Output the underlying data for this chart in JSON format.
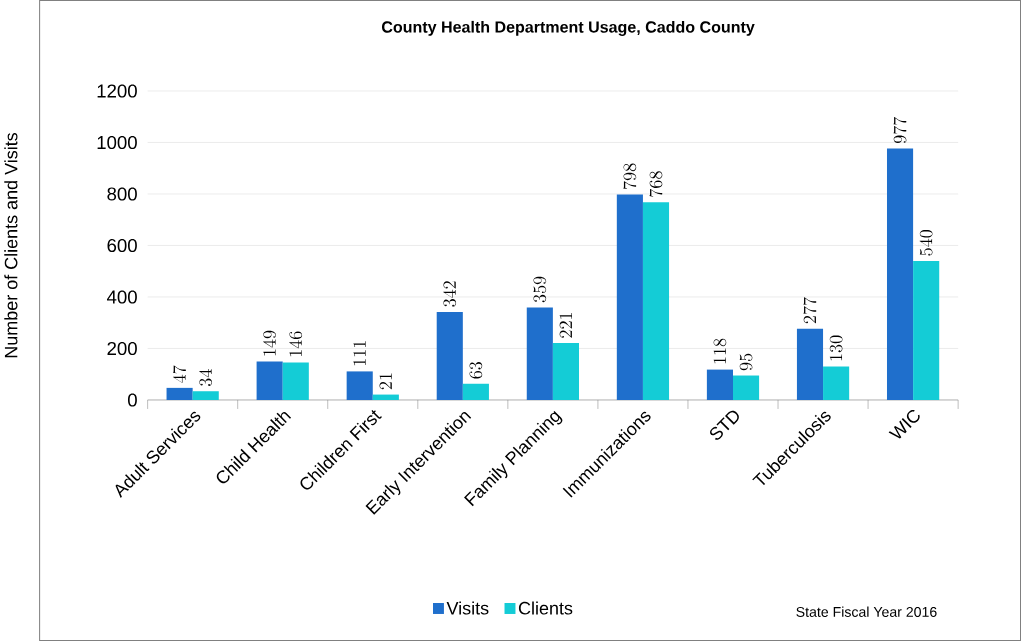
{
  "chart_data": {
    "type": "bar",
    "title": "County Health Department Usage, Caddo County",
    "ylabel": "Number of Clients and Visits",
    "categories": [
      "Adult Services",
      "Child Health",
      "Children First",
      "Early Intervention",
      "Family Planning",
      "Immunizations",
      "STD",
      "Tuberculosis",
      "WIC"
    ],
    "series": [
      {
        "name": "Visits",
        "color": "#1f6fcc",
        "values": [
          47,
          149,
          111,
          342,
          359,
          798,
          118,
          277,
          977
        ]
      },
      {
        "name": "Clients",
        "color": "#14ccd6",
        "values": [
          34,
          146,
          21,
          63,
          221,
          768,
          95,
          130,
          540
        ]
      }
    ],
    "ylim": [
      0,
      1200
    ],
    "yticks": [
      0,
      200,
      400,
      600,
      800,
      1000,
      1200
    ],
    "grid": "y",
    "legend": "bottom",
    "data_labels": true,
    "annotations": [
      "State Fiscal Year 2016"
    ]
  }
}
